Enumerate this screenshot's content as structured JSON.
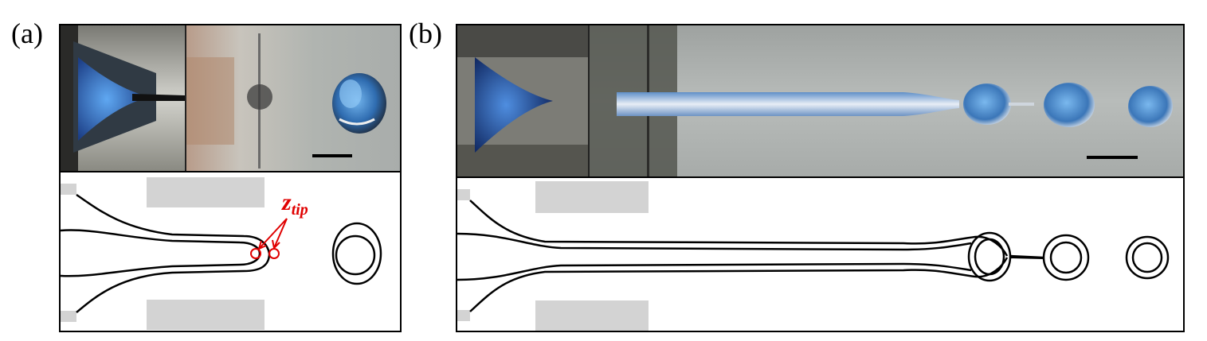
{
  "figure": {
    "panels": [
      {
        "label": "(a)",
        "annotation": {
          "main": "z",
          "sub": "tip"
        }
      },
      {
        "label": "(b)"
      }
    ],
    "colors": {
      "annotation": "#e00000",
      "electrode": "#d3d3d3",
      "outline": "#000000",
      "droplet_blue": "#3a78c8"
    }
  }
}
